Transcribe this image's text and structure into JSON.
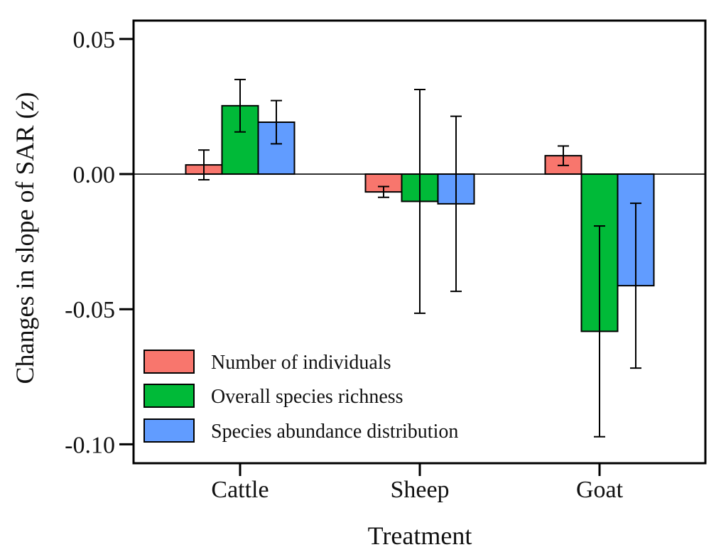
{
  "chart_data": {
    "type": "bar",
    "title": "",
    "xlabel": "Treatment",
    "ylabel": "Changes in slope of SAR (",
    "ylabel_italic": "z",
    "ylabel_suffix": ")",
    "categories": [
      "Cattle",
      "Sheep",
      "Goat"
    ],
    "ylim": [
      -0.107,
      0.0568
    ],
    "yticks": [
      0.05,
      0.0,
      -0.05,
      -0.1
    ],
    "ytick_labels": [
      "0.05",
      "0.00",
      "-0.05",
      "-0.10"
    ],
    "grid": false,
    "reference_line": 0,
    "legend_position": "bottom-left",
    "series": [
      {
        "name": "Number of individuals",
        "color": "#F8766D",
        "values": [
          0.0034,
          -0.0066,
          0.0068
        ],
        "errors": [
          0.0055,
          0.002,
          0.0036
        ]
      },
      {
        "name": "Overall species richness",
        "color": "#00BA38",
        "values": [
          0.0253,
          -0.0101,
          -0.0582
        ],
        "errors": [
          0.0097,
          0.0414,
          0.039
        ]
      },
      {
        "name": "Species abundance distribution",
        "color": "#619CFF",
        "values": [
          0.0192,
          -0.011,
          -0.0413
        ],
        "errors": [
          0.008,
          0.0324,
          0.0305
        ]
      }
    ]
  }
}
